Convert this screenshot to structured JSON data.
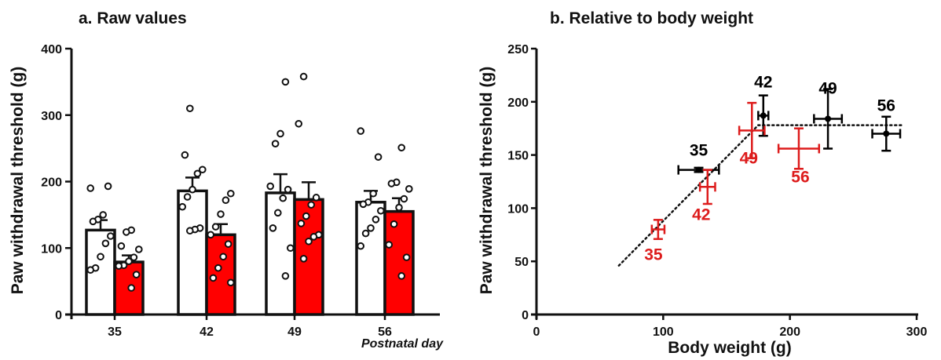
{
  "chart_data": [
    {
      "type": "bar",
      "title": "a. Raw values",
      "ylabel": "Paw withdrawal threshold (g)",
      "xlabel_note": "Postnatal day",
      "ylim": [
        0,
        400
      ],
      "yticks": [
        0,
        100,
        200,
        300,
        400
      ],
      "categories": [
        "35",
        "42",
        "49",
        "56"
      ],
      "series": [
        {
          "fill": "#ffffff",
          "values": [
            127,
            186,
            183,
            169
          ],
          "sem": [
            15,
            20,
            28,
            17
          ],
          "points": [
            [
              190,
              193,
              150,
              143,
              140,
              118,
              107,
              87,
              70,
              67
            ],
            [
              310,
              240,
              218,
              212,
              188,
              177,
              162,
              130,
              128,
              126
            ],
            [
              350,
              272,
              257,
              193,
              188,
              175,
              153,
              130,
              100,
              58
            ],
            [
              276,
              237,
              182,
              169,
              166,
              156,
              143,
              130,
              122,
              103
            ]
          ]
        },
        {
          "fill": "#ff0000",
          "values": [
            79,
            120,
            173,
            155
          ],
          "sem": [
            10,
            16,
            26,
            20
          ],
          "points": [
            [
              127,
              124,
              103,
              98,
              86,
              80,
              74,
              73,
              60,
              40
            ],
            [
              182,
              172,
              151,
              132,
              120,
              106,
              87,
              70,
              55,
              48
            ],
            [
              358,
              287,
              176,
              165,
              148,
              137,
              120,
              117,
              110,
              84
            ],
            [
              251,
              199,
              197,
              189,
              174,
              161,
              136,
              105,
              86,
              58
            ]
          ]
        }
      ]
    },
    {
      "type": "scatter",
      "title": "b. Relative to body weight",
      "xlabel": "Body weight (g)",
      "ylabel": "Paw withdrawal threshold (g)",
      "xlim": [
        0,
        300
      ],
      "ylim": [
        0,
        250
      ],
      "xticks": [
        0,
        100,
        200,
        300
      ],
      "yticks": [
        0,
        50,
        100,
        150,
        200,
        250
      ],
      "series": [
        {
          "color": "#000000",
          "points": [
            {
              "label": "35",
              "x": 128,
              "y": 136,
              "xerr": 16,
              "yerr": 2
            },
            {
              "label": "42",
              "x": 179,
              "y": 187,
              "xerr": 4,
              "yerr": 19
            },
            {
              "label": "49",
              "x": 230,
              "y": 184,
              "xerr": 11,
              "yerr": 28
            },
            {
              "label": "56",
              "x": 276,
              "y": 170,
              "xerr": 11,
              "yerr": 16
            }
          ]
        },
        {
          "color": "#dd1c1c",
          "points": [
            {
              "label": "35",
              "x": 96,
              "y": 80,
              "xerr": 5,
              "yerr": 9
            },
            {
              "label": "42",
              "x": 135,
              "y": 120,
              "xerr": 6,
              "yerr": 16
            },
            {
              "label": "49",
              "x": 170,
              "y": 173,
              "xerr": 10,
              "yerr": 26
            },
            {
              "label": "56",
              "x": 207,
              "y": 156,
              "xerr": 16,
              "yerr": 19
            }
          ]
        }
      ],
      "fit_line": {
        "x": [
          65,
          175,
          290
        ],
        "y": [
          46,
          178,
          178
        ]
      }
    }
  ]
}
